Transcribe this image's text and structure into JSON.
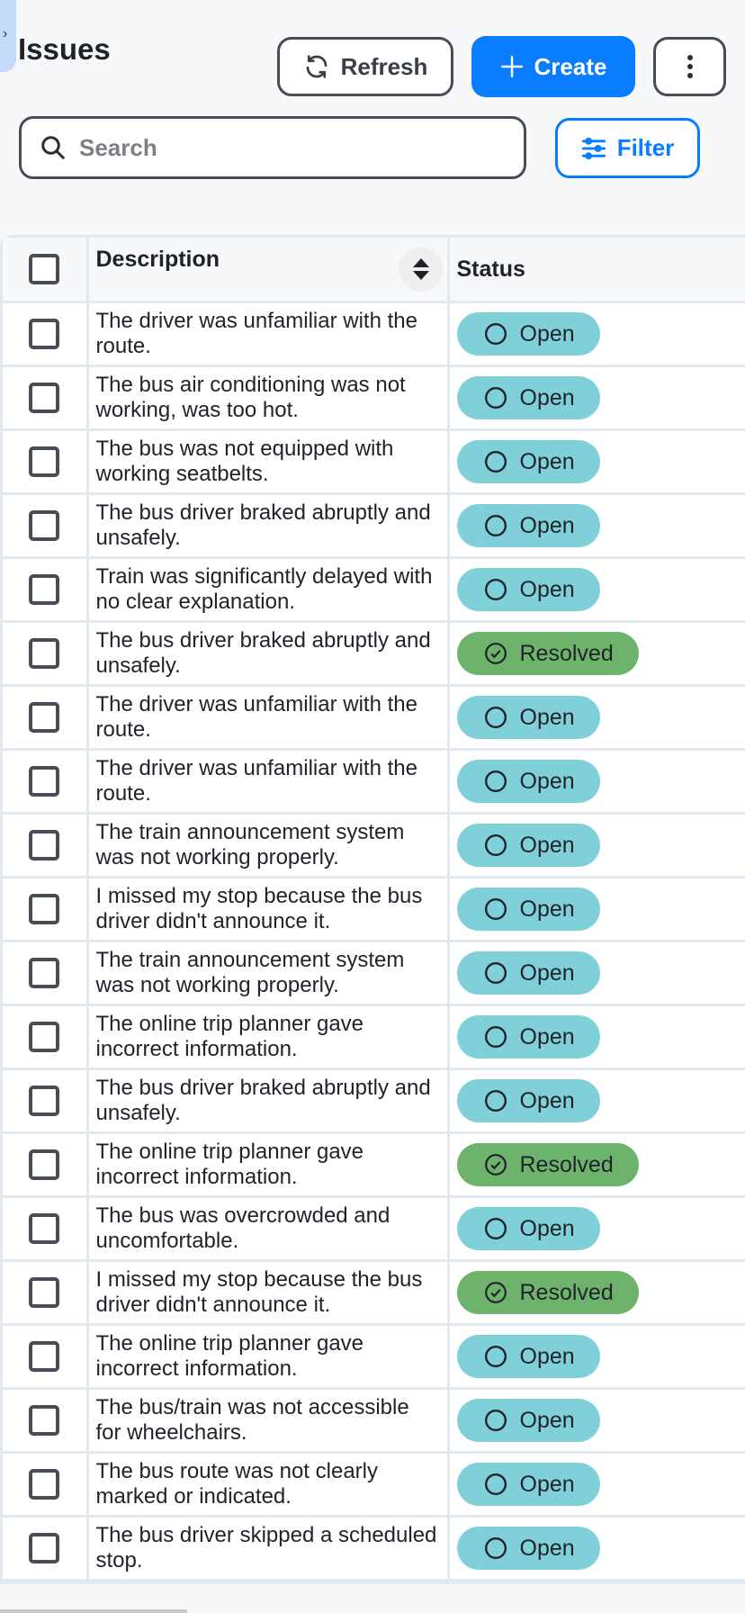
{
  "page": {
    "title": "Issues"
  },
  "toolbar": {
    "refresh_label": "Refresh",
    "create_label": "Create",
    "filter_label": "Filter",
    "search_placeholder": "Search",
    "search_value": ""
  },
  "colors": {
    "primary": "#0a7cff",
    "open": "#80d0d9",
    "resolved": "#6db36b"
  },
  "table": {
    "columns": [
      "Description",
      "Status"
    ],
    "rows": [
      {
        "description": "The driver was unfamiliar with the route.",
        "status": "Open"
      },
      {
        "description": "The bus air conditioning was not working, was too hot.",
        "status": "Open"
      },
      {
        "description": "The bus was not equipped with working seatbelts.",
        "status": "Open"
      },
      {
        "description": "The bus driver braked abruptly and unsafely.",
        "status": "Open"
      },
      {
        "description": "Train was significantly delayed with no clear explanation.",
        "status": "Open"
      },
      {
        "description": "The bus driver braked abruptly and unsafely.",
        "status": "Resolved"
      },
      {
        "description": "The driver was unfamiliar with the route.",
        "status": "Open"
      },
      {
        "description": "The driver was unfamiliar with the route.",
        "status": "Open"
      },
      {
        "description": "The train announcement system was not working properly.",
        "status": "Open"
      },
      {
        "description": "I missed my stop because the bus driver didn't announce it.",
        "status": "Open"
      },
      {
        "description": "The train announcement system was not working properly.",
        "status": "Open"
      },
      {
        "description": "The online trip planner gave incorrect information.",
        "status": "Open"
      },
      {
        "description": "The bus driver braked abruptly and unsafely.",
        "status": "Open"
      },
      {
        "description": "The online trip planner gave incorrect information.",
        "status": "Resolved"
      },
      {
        "description": "The bus was overcrowded and uncomfortable.",
        "status": "Open"
      },
      {
        "description": "I missed my stop because the bus driver didn't announce it.",
        "status": "Resolved"
      },
      {
        "description": "The online trip planner gave incorrect information.",
        "status": "Open"
      },
      {
        "description": "The bus/train was not accessible for wheelchairs.",
        "status": "Open"
      },
      {
        "description": "The bus route was not clearly marked or indicated.",
        "status": "Open"
      },
      {
        "description": "The bus driver skipped a scheduled stop.",
        "status": "Open"
      }
    ]
  }
}
